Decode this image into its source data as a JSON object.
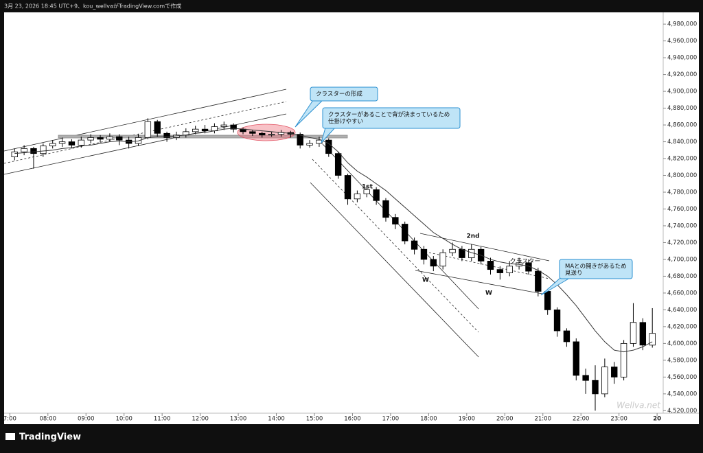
{
  "chart_data": {
    "type": "candlestick",
    "header": "3月 23, 2026 18:45 UTC+9、kou_wellvaがTradingView.comで作成",
    "brand": "TradingView",
    "watermark": "Wellva.net",
    "callouts": [
      [
        "クラスターの形成"
      ],
      [
        "クラスターがあることで背が決まっているため",
        "仕掛けやすい"
      ],
      [
        "MAとの開きがあるため",
        "見送り"
      ]
    ],
    "labels": [
      "1st",
      "2nd",
      "W",
      "W",
      "クラスター"
    ],
    "up_color": "#ffffff",
    "down_color": "#000000",
    "x": [
      7,
      7.25,
      7.5,
      7.75,
      8,
      8.25,
      8.5,
      8.75,
      9,
      9.25,
      9.5,
      9.75,
      10,
      10.25,
      10.5,
      10.75,
      11,
      11.25,
      11.5,
      11.75,
      12,
      12.25,
      12.5,
      12.75,
      13,
      13.25,
      13.5,
      13.75,
      14,
      14.25,
      14.5,
      14.75,
      15,
      15.25,
      15.5,
      15.75,
      16,
      16.25,
      16.5,
      16.75,
      17,
      17.25,
      17.5,
      17.75,
      18,
      18.25,
      18.5,
      18.75,
      19,
      19.25,
      19.5,
      19.75,
      20,
      20.25,
      20.5,
      20.75,
      21,
      21.25,
      21.5,
      21.75,
      22,
      22.25,
      22.5,
      22.75,
      23,
      23.25,
      23.5,
      23.75
    ],
    "open": [
      4822000,
      4828000,
      4832000,
      4826000,
      4835000,
      4838000,
      4840000,
      4836000,
      4842000,
      4845000,
      4843000,
      4846000,
      4842000,
      4838000,
      4845000,
      4864000,
      4850000,
      4845000,
      4848000,
      4852000,
      4855000,
      4853000,
      4858000,
      4860000,
      4855000,
      4852000,
      4850000,
      4848000,
      4849000,
      4851000,
      4849000,
      4836000,
      4838000,
      4842000,
      4826000,
      4800000,
      4772000,
      4778000,
      4783000,
      4770000,
      4750000,
      4742000,
      4722000,
      4712000,
      4700000,
      4692000,
      4708000,
      4712000,
      4702000,
      4712000,
      4698000,
      4688000,
      4684000,
      4692000,
      4696000,
      4686000,
      4662000,
      4640000,
      4615000,
      4602000,
      4562000,
      4556000,
      4540000,
      4572000,
      4560000,
      4600000,
      4625000,
      4598000
    ],
    "high": [
      4832000,
      4836000,
      4834000,
      4838000,
      4842000,
      4845000,
      4843000,
      4846000,
      4849000,
      4848000,
      4850000,
      4849000,
      4846000,
      4849000,
      4868000,
      4866000,
      4852000,
      4852000,
      4856000,
      4859000,
      4860000,
      4862000,
      4864000,
      4862000,
      4857000,
      4854000,
      4852000,
      4852000,
      4854000,
      4853000,
      4851000,
      4842000,
      4846000,
      4844000,
      4828000,
      4802000,
      4782000,
      4788000,
      4786000,
      4773000,
      4754000,
      4745000,
      4726000,
      4716000,
      4704000,
      4712000,
      4720000,
      4716000,
      4718000,
      4715000,
      4702000,
      4692000,
      4698000,
      4702000,
      4700000,
      4690000,
      4665000,
      4643000,
      4618000,
      4606000,
      4570000,
      4574000,
      4582000,
      4578000,
      4604000,
      4648000,
      4630000,
      4642000
    ],
    "low": [
      4818000,
      4824000,
      4808000,
      4822000,
      4832000,
      4834000,
      4832000,
      4833000,
      4838000,
      4839000,
      4840000,
      4836000,
      4832000,
      4835000,
      4843000,
      4846000,
      4840000,
      4842000,
      4845000,
      4849000,
      4850000,
      4850000,
      4854000,
      4851000,
      4849000,
      4847000,
      4845000,
      4846000,
      4846000,
      4845000,
      4832000,
      4833000,
      4834000,
      4822000,
      4796000,
      4765000,
      4768000,
      4774000,
      4765000,
      4745000,
      4736000,
      4718000,
      4706000,
      4694000,
      4686000,
      4688000,
      4704000,
      4698000,
      4698000,
      4694000,
      4682000,
      4676000,
      4680000,
      4688000,
      4682000,
      4656000,
      4634000,
      4608000,
      4596000,
      4556000,
      4540000,
      4520000,
      4536000,
      4552000,
      4556000,
      4596000,
      4592000,
      4595000
    ],
    "close": [
      4828000,
      4832000,
      4826000,
      4835000,
      4838000,
      4840000,
      4836000,
      4842000,
      4845000,
      4843000,
      4846000,
      4842000,
      4838000,
      4845000,
      4864000,
      4850000,
      4845000,
      4848000,
      4852000,
      4855000,
      4853000,
      4858000,
      4860000,
      4855000,
      4852000,
      4850000,
      4848000,
      4849000,
      4851000,
      4849000,
      4836000,
      4838000,
      4842000,
      4826000,
      4800000,
      4772000,
      4778000,
      4783000,
      4770000,
      4750000,
      4742000,
      4722000,
      4712000,
      4700000,
      4692000,
      4708000,
      4712000,
      4702000,
      4712000,
      4698000,
      4688000,
      4684000,
      4692000,
      4696000,
      4686000,
      4662000,
      4640000,
      4615000,
      4602000,
      4562000,
      4556000,
      4540000,
      4572000,
      4560000,
      4600000,
      4625000,
      4598000,
      4612000
    ],
    "ma": {
      "color": "#333333",
      "values": [
        4826000,
        4827000,
        4828000,
        4829000,
        4830000,
        4832000,
        4833000,
        4835000,
        4836000,
        4838000,
        4840000,
        4841000,
        4840000,
        4841000,
        4845000,
        4846000,
        4846000,
        4847000,
        4848000,
        4850000,
        4851000,
        4853000,
        4855000,
        4856000,
        4855000,
        4854000,
        4853000,
        4852000,
        4851000,
        4850000,
        4848000,
        4845000,
        4843000,
        4838000,
        4828000,
        4815000,
        4805000,
        4798000,
        4790000,
        4782000,
        4772000,
        4762000,
        4752000,
        4742000,
        4732000,
        4725000,
        4718000,
        4712000,
        4708000,
        4705000,
        4700000,
        4697000,
        4695000,
        4694000,
        4692000,
        4687000,
        4680000,
        4670000,
        4658000,
        4645000,
        4630000,
        4615000,
        4602000,
        4592000,
        4590000,
        4592000,
        4596000,
        4602000
      ]
    },
    "xlim": [
      6.85,
      24.16
    ],
    "xticks": [
      {
        "value": 7,
        "label": "7:00"
      },
      {
        "value": 8,
        "label": "08:00"
      },
      {
        "value": 9,
        "label": "09:00"
      },
      {
        "value": 10,
        "label": "10:00"
      },
      {
        "value": 11,
        "label": "11:00"
      },
      {
        "value": 12,
        "label": "12:00"
      },
      {
        "value": 13,
        "label": "13:00"
      },
      {
        "value": 14,
        "label": "14:00"
      },
      {
        "value": 15,
        "label": "15:00"
      },
      {
        "value": 16,
        "label": "16:00"
      },
      {
        "value": 17,
        "label": "17:00"
      },
      {
        "value": 18,
        "label": "18:00"
      },
      {
        "value": 19,
        "label": "19:00"
      },
      {
        "value": 20,
        "label": "20:00"
      },
      {
        "value": 21,
        "label": "21:00"
      },
      {
        "value": 22,
        "label": "22:00"
      },
      {
        "value": 23,
        "label": "23:00"
      },
      {
        "value": 24,
        "label": "20"
      }
    ],
    "ylim": [
      4517000,
      4994000
    ],
    "yticks": [
      {
        "value": 4520000,
        "label": "4,520,000"
      },
      {
        "value": 4540000,
        "label": "4,540,000"
      },
      {
        "value": 4560000,
        "label": "4,560,000"
      },
      {
        "value": 4580000,
        "label": "4,580,000"
      },
      {
        "value": 4600000,
        "label": "4,600,000"
      },
      {
        "value": 4620000,
        "label": "4,620,000"
      },
      {
        "value": 4640000,
        "label": "4,640,000"
      },
      {
        "value": 4660000,
        "label": "4,660,000"
      },
      {
        "value": 4680000,
        "label": "4,680,000"
      },
      {
        "value": 4700000,
        "label": "4,700,000"
      },
      {
        "value": 4720000,
        "label": "4,720,000"
      },
      {
        "value": 4740000,
        "label": "4,740,000"
      },
      {
        "value": 4760000,
        "label": "4,760,000"
      },
      {
        "value": 4780000,
        "label": "4,780,000"
      },
      {
        "value": 4800000,
        "label": "4,800,000"
      },
      {
        "value": 4820000,
        "label": "4,820,000"
      },
      {
        "value": 4840000,
        "label": "4,840,000"
      },
      {
        "value": 4860000,
        "label": "4,860,000"
      },
      {
        "value": 4880000,
        "label": "4,880,000"
      },
      {
        "value": 4900000,
        "label": "4,900,000"
      },
      {
        "value": 4920000,
        "label": "4,920,000"
      },
      {
        "value": 4940000,
        "label": "4,940,000"
      },
      {
        "value": 4960000,
        "label": "4,960,000"
      },
      {
        "value": 4980000,
        "label": "4,980,000"
      }
    ]
  }
}
